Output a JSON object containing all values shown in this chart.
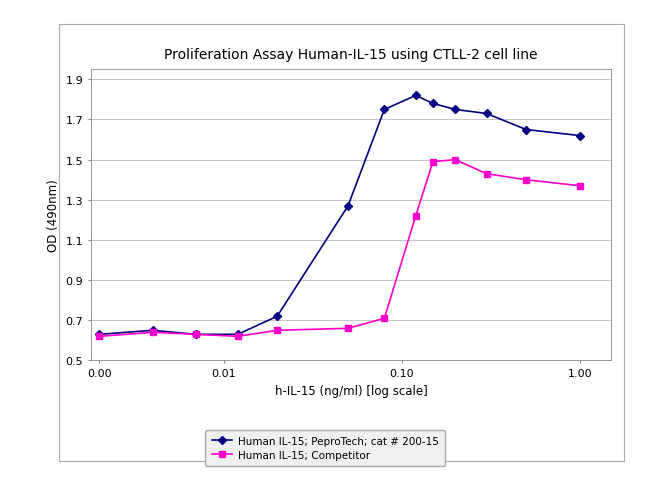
{
  "title": "Proliferation Assay Human-IL-15 using CTLL-2 cell line",
  "xlabel": "h-IL-15 (ng/ml) [log scale]",
  "ylabel": "OD (490nm)",
  "ylim": [
    0.5,
    1.95
  ],
  "yticks": [
    0.5,
    0.7,
    0.9,
    1.1,
    1.3,
    1.5,
    1.7,
    1.9
  ],
  "xtick_labels": [
    "0.00",
    "0.01",
    "0.10",
    "1.00"
  ],
  "xtick_vals": [
    0.002,
    0.01,
    0.1,
    1.0
  ],
  "series1_label": "Human IL-15; PeproTech; cat # 200-15",
  "series1_color": "#000080",
  "series1_x": [
    0.002,
    0.004,
    0.007,
    0.012,
    0.02,
    0.05,
    0.08,
    0.12,
    0.15,
    0.2,
    0.3,
    0.5,
    1.0
  ],
  "series1_y": [
    0.63,
    0.65,
    0.63,
    0.63,
    0.72,
    1.27,
    1.75,
    1.82,
    1.78,
    1.75,
    1.73,
    1.65,
    1.62
  ],
  "series2_label": "Human IL-15; Competitor",
  "series2_color": "#FF00CC",
  "series2_x": [
    0.002,
    0.004,
    0.007,
    0.012,
    0.02,
    0.05,
    0.08,
    0.12,
    0.15,
    0.2,
    0.3,
    0.5,
    1.0
  ],
  "series2_y": [
    0.62,
    0.64,
    0.63,
    0.62,
    0.65,
    0.66,
    0.71,
    1.22,
    1.49,
    1.5,
    1.43,
    1.4,
    1.37
  ],
  "bg_color": "#ffffff",
  "plot_bg_color": "#ffffff",
  "outer_box_color": "#aaaaaa",
  "grid_color": "#bbbbbb",
  "title_fontsize": 10,
  "label_fontsize": 8.5,
  "tick_fontsize": 8,
  "legend_fontsize": 7.5,
  "marker_size": 4,
  "line_width": 1.2
}
